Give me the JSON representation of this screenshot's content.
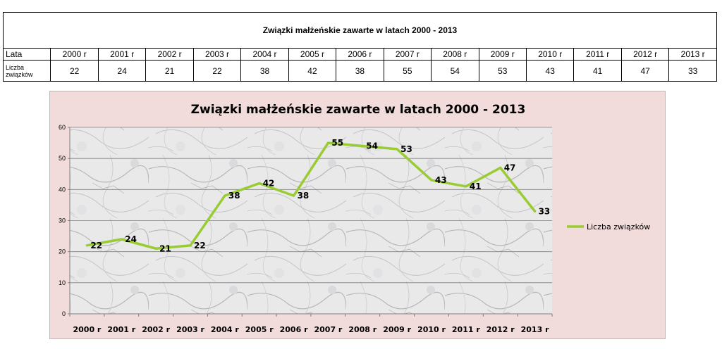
{
  "table": {
    "title": "Związki małżeńskie zawarte w latach 2000 - 2013",
    "row1_label": "Lata",
    "row2_label": "Liczba związków",
    "years": [
      "2000 r",
      "2001 r",
      "2002 r",
      "2003 r",
      "2004 r",
      "2005 r",
      "2006 r",
      "2007 r",
      "2008 r",
      "2009 r",
      "2010 r",
      "2011 r",
      "2012 r",
      "2013 r"
    ],
    "values": [
      "22",
      "24",
      "21",
      "22",
      "38",
      "42",
      "38",
      "55",
      "54",
      "53",
      "43",
      "41",
      "47",
      "33"
    ]
  },
  "colors": {
    "line": "#99cc33",
    "chart_background": "#f2dcdb",
    "gridline": "#808080"
  },
  "chart_data": {
    "type": "line",
    "title": "Związki małżeńskie zawarte w latach 2000 - 2013",
    "categories": [
      "2000 r",
      "2001 r",
      "2002 r",
      "2003 r",
      "2004 r",
      "2005 r",
      "2006 r",
      "2007 r",
      "2008 r",
      "2009 r",
      "2010 r",
      "2011 r",
      "2012 r",
      "2013 r"
    ],
    "series": [
      {
        "name": "Liczba związków",
        "values": [
          22,
          24,
          21,
          22,
          38,
          42,
          38,
          55,
          54,
          53,
          43,
          41,
          47,
          33
        ]
      }
    ],
    "xlabel": "",
    "ylabel": "",
    "ylim": [
      0,
      60
    ],
    "yticks": [
      0,
      10,
      20,
      30,
      40,
      50,
      60
    ],
    "grid": true,
    "data_labels": true,
    "legend_position": "right",
    "plot_background": "marble texture"
  }
}
